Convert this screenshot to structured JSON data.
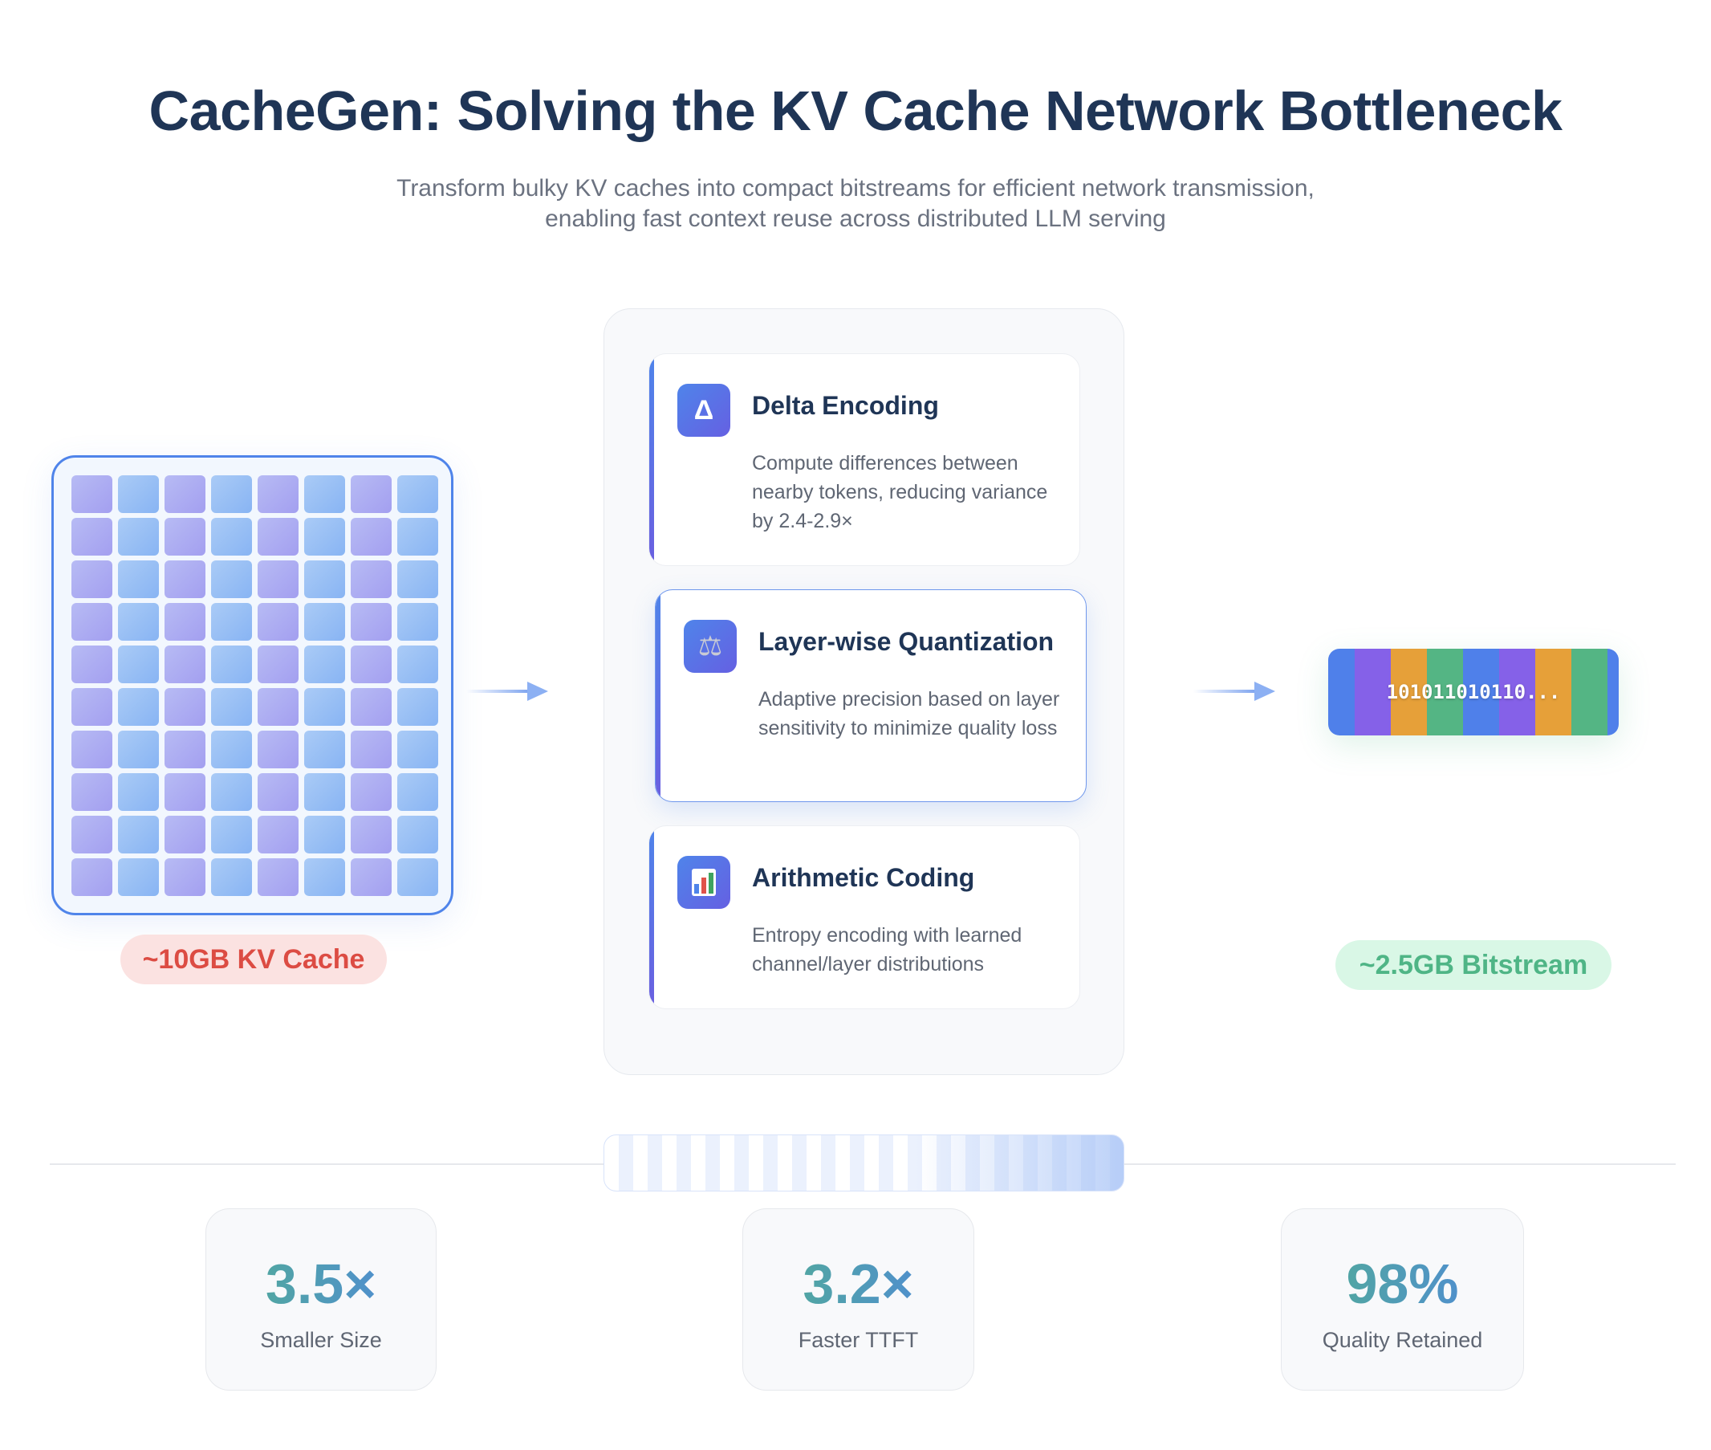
{
  "header": {
    "title": "CacheGen: Solving the KV Cache Network Bottleneck",
    "subtitle_line1": "Transform bulky KV caches into compact bitstreams for efficient network transmission,",
    "subtitle_line2": "enabling fast context reuse across distributed LLM serving"
  },
  "input": {
    "label": "~10GB KV Cache",
    "grid_rows": 10,
    "grid_cols": 8
  },
  "pipeline": {
    "steps": [
      {
        "icon": "delta-icon",
        "glyph": "Δ",
        "title": "Delta Encoding",
        "description": "Compute differences between nearby tokens, reducing variance by 2.4-2.9×"
      },
      {
        "icon": "scales-icon",
        "glyph": "⚖",
        "title": "Layer-wise Quantization",
        "description": "Adaptive precision based on layer sensitivity to minimize quality loss"
      },
      {
        "icon": "bar-chart-icon",
        "glyph": "",
        "title": "Arithmetic Coding",
        "description": "Entropy encoding with learned channel/layer distributions"
      }
    ],
    "active_step": 1
  },
  "output": {
    "bits": "101011010110...",
    "label": "~2.5GB Bitstream",
    "stripe_colors": [
      "#4f80ea",
      "#8561e8",
      "#e6a039",
      "#54b584"
    ]
  },
  "stats": [
    {
      "value": "3.5×",
      "label": "Smaller Size"
    },
    {
      "value": "3.2×",
      "label": "Faster TTFT"
    },
    {
      "value": "98%",
      "label": "Quality Retained"
    }
  ]
}
